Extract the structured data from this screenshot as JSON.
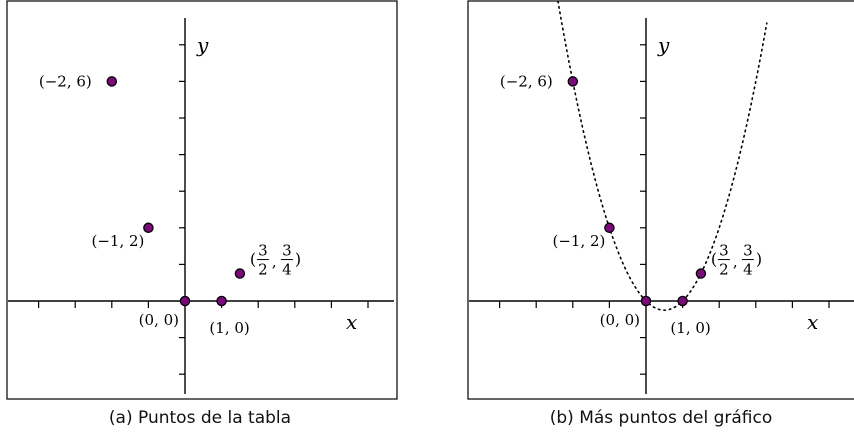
{
  "colors": {
    "point_fill": "#7a0a7a",
    "point_stroke": "#000000",
    "axis": "#000000",
    "frame": "#000000",
    "curve": "#000000"
  },
  "chart_data": [
    {
      "type": "scatter",
      "caption": "(a)  Puntos de la tabla",
      "xlabel": "x",
      "ylabel": "y",
      "xlim": [
        -4,
        5
      ],
      "ylim": [
        -2.5,
        7.5
      ],
      "grid": false,
      "points": [
        {
          "x": -2,
          "y": 6,
          "label": "(−2, 6)"
        },
        {
          "x": -1,
          "y": 2,
          "label": "(−1, 2)"
        },
        {
          "x": 0,
          "y": 0,
          "label": "(0, 0)"
        },
        {
          "x": 1,
          "y": 0,
          "label": "(1, 0)"
        },
        {
          "x": 1.5,
          "y": 0.75,
          "label_pre": "(",
          "label_num1": "3",
          "label_den1": "2",
          "label_sep": ",",
          "label_num2": "3",
          "label_den2": "4",
          "label_post": ")"
        }
      ]
    },
    {
      "type": "scatter",
      "caption": "(b)  Más puntos del gráfico",
      "xlabel": "x",
      "ylabel": "y",
      "xlim": [
        -4,
        5
      ],
      "ylim": [
        -2.5,
        7.5
      ],
      "grid": false,
      "curve": {
        "style": "dotted",
        "function": "y = x^2 - x",
        "x_range": [
          -2.65,
          3.3
        ]
      },
      "points": [
        {
          "x": -2,
          "y": 6,
          "label": "(−2, 6)"
        },
        {
          "x": -1,
          "y": 2,
          "label": "(−1, 2)"
        },
        {
          "x": 0,
          "y": 0,
          "label": "(0, 0)"
        },
        {
          "x": 1,
          "y": 0,
          "label": "(1, 0)"
        },
        {
          "x": 1.5,
          "y": 0.75,
          "label_pre": "(",
          "label_num1": "3",
          "label_den1": "2",
          "label_sep": ",",
          "label_num2": "3",
          "label_den2": "4",
          "label_post": ")"
        }
      ]
    }
  ]
}
